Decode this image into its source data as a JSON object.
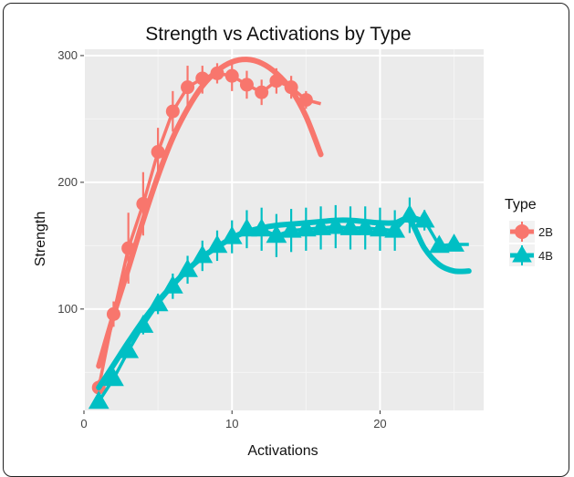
{
  "chart_data": {
    "type": "line",
    "title": "Strength vs Activations by Type",
    "xlabel": "Activations",
    "ylabel": "Strength",
    "xlim": [
      0,
      27
    ],
    "ylim": [
      20,
      305
    ],
    "x_ticks": [
      "0",
      "10",
      "20"
    ],
    "x_tick_values": [
      0,
      10,
      20
    ],
    "y_ticks": [
      "100",
      "200",
      "300"
    ],
    "y_tick_values": [
      100,
      200,
      300
    ],
    "grid": true,
    "legend": {
      "title": "Type",
      "position": "right"
    },
    "series": [
      {
        "name": "2B",
        "color": "#F8766D",
        "marker": "circle",
        "points": [
          {
            "x": 1,
            "y": 38,
            "lo": 32,
            "hi": 44
          },
          {
            "x": 2,
            "y": 96,
            "lo": 86,
            "hi": 106
          },
          {
            "x": 3,
            "y": 148,
            "lo": 120,
            "hi": 176
          },
          {
            "x": 4,
            "y": 183,
            "lo": 158,
            "hi": 208
          },
          {
            "x": 5,
            "y": 224,
            "lo": 205,
            "hi": 243
          },
          {
            "x": 6,
            "y": 256,
            "lo": 240,
            "hi": 272
          },
          {
            "x": 7,
            "y": 275,
            "lo": 258,
            "hi": 292
          },
          {
            "x": 8,
            "y": 282,
            "lo": 270,
            "hi": 292
          },
          {
            "x": 9,
            "y": 286,
            "lo": 278,
            "hi": 294
          },
          {
            "x": 10,
            "y": 284,
            "lo": 272,
            "hi": 296
          },
          {
            "x": 11,
            "y": 277,
            "lo": 266,
            "hi": 288
          },
          {
            "x": 12,
            "y": 271,
            "lo": 261,
            "hi": 281
          },
          {
            "x": 13,
            "y": 280,
            "lo": 270,
            "hi": 290
          },
          {
            "x": 14,
            "y": 275,
            "lo": 266,
            "hi": 284
          },
          {
            "x": 15,
            "y": 265,
            "lo": 258,
            "hi": 272
          }
        ],
        "fit_straight": [
          [
            1,
            38
          ],
          [
            2,
            96
          ],
          [
            3,
            148
          ],
          [
            4,
            183
          ],
          [
            5,
            224
          ],
          [
            6,
            256
          ],
          [
            7,
            275
          ],
          [
            8,
            282
          ],
          [
            9,
            286
          ],
          [
            10,
            284
          ],
          [
            11,
            277
          ],
          [
            12,
            271
          ],
          [
            13,
            280
          ],
          [
            14,
            275
          ],
          [
            15,
            265
          ],
          [
            16,
            262
          ]
        ],
        "fit_smooth": [
          [
            1,
            55
          ],
          [
            2,
            95
          ],
          [
            3,
            132
          ],
          [
            4,
            170
          ],
          [
            5,
            205
          ],
          [
            6,
            235
          ],
          [
            7,
            258
          ],
          [
            8,
            276
          ],
          [
            9,
            288
          ],
          [
            10,
            295
          ],
          [
            11,
            297
          ],
          [
            12,
            294
          ],
          [
            13,
            286
          ],
          [
            14,
            273
          ],
          [
            15,
            252
          ],
          [
            16,
            222
          ]
        ]
      },
      {
        "name": "4B",
        "color": "#00BFC4",
        "marker": "triangle",
        "points": [
          {
            "x": 1,
            "y": 27,
            "lo": 24,
            "hi": 30
          },
          {
            "x": 2,
            "y": 45,
            "lo": 40,
            "hi": 50
          },
          {
            "x": 3,
            "y": 67,
            "lo": 62,
            "hi": 72
          },
          {
            "x": 4,
            "y": 87,
            "lo": 80,
            "hi": 94
          },
          {
            "x": 5,
            "y": 104,
            "lo": 96,
            "hi": 112
          },
          {
            "x": 6,
            "y": 118,
            "lo": 108,
            "hi": 128
          },
          {
            "x": 7,
            "y": 131,
            "lo": 120,
            "hi": 142
          },
          {
            "x": 8,
            "y": 142,
            "lo": 130,
            "hi": 154
          },
          {
            "x": 9,
            "y": 150,
            "lo": 138,
            "hi": 162
          },
          {
            "x": 10,
            "y": 157,
            "lo": 144,
            "hi": 170
          },
          {
            "x": 11,
            "y": 163,
            "lo": 148,
            "hi": 178
          },
          {
            "x": 12,
            "y": 163,
            "lo": 146,
            "hi": 180
          },
          {
            "x": 13,
            "y": 158,
            "lo": 141,
            "hi": 175
          },
          {
            "x": 14,
            "y": 162,
            "lo": 145,
            "hi": 179
          },
          {
            "x": 15,
            "y": 163,
            "lo": 146,
            "hi": 180
          },
          {
            "x": 16,
            "y": 164,
            "lo": 147,
            "hi": 181
          },
          {
            "x": 17,
            "y": 165,
            "lo": 148,
            "hi": 182
          },
          {
            "x": 18,
            "y": 164,
            "lo": 147,
            "hi": 181
          },
          {
            "x": 19,
            "y": 164,
            "lo": 147,
            "hi": 181
          },
          {
            "x": 20,
            "y": 163,
            "lo": 146,
            "hi": 180
          },
          {
            "x": 21,
            "y": 162,
            "lo": 146,
            "hi": 178
          },
          {
            "x": 22,
            "y": 174,
            "lo": 160,
            "hi": 188
          },
          {
            "x": 23,
            "y": 170,
            "lo": 162,
            "hi": 178
          },
          {
            "x": 24,
            "y": 150,
            "lo": 146,
            "hi": 154
          },
          {
            "x": 25,
            "y": 151,
            "lo": 148,
            "hi": 154
          }
        ],
        "fit_straight": [
          [
            1,
            27
          ],
          [
            2,
            45
          ],
          [
            3,
            67
          ],
          [
            4,
            87
          ],
          [
            5,
            104
          ],
          [
            6,
            118
          ],
          [
            7,
            131
          ],
          [
            8,
            142
          ],
          [
            9,
            150
          ],
          [
            10,
            157
          ],
          [
            11,
            163
          ],
          [
            12,
            163
          ],
          [
            13,
            158
          ],
          [
            14,
            162
          ],
          [
            15,
            163
          ],
          [
            16,
            164
          ],
          [
            17,
            165
          ],
          [
            18,
            164
          ],
          [
            19,
            164
          ],
          [
            20,
            163
          ],
          [
            21,
            162
          ],
          [
            22,
            174
          ],
          [
            23,
            170
          ],
          [
            24,
            150
          ],
          [
            25,
            151
          ],
          [
            26,
            151
          ]
        ],
        "fit_smooth": [
          [
            1,
            38
          ],
          [
            2,
            56
          ],
          [
            3,
            74
          ],
          [
            4,
            91
          ],
          [
            5,
            106
          ],
          [
            6,
            119
          ],
          [
            7,
            131
          ],
          [
            8,
            141
          ],
          [
            9,
            149
          ],
          [
            10,
            156
          ],
          [
            11,
            161
          ],
          [
            12,
            164
          ],
          [
            13,
            166
          ],
          [
            14,
            167
          ],
          [
            15,
            168
          ],
          [
            16,
            169
          ],
          [
            17,
            170
          ],
          [
            18,
            170
          ],
          [
            19,
            169
          ],
          [
            20,
            168
          ],
          [
            21,
            168
          ],
          [
            22,
            170
          ],
          [
            23,
            148
          ],
          [
            24,
            135
          ],
          [
            25,
            130
          ],
          [
            26,
            130
          ]
        ]
      }
    ]
  }
}
